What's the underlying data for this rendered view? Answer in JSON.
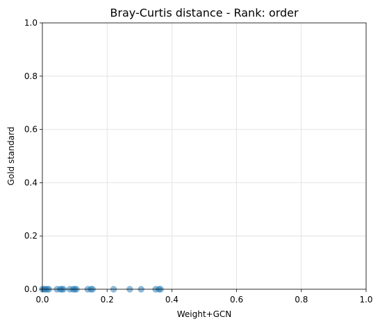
{
  "chart_data": {
    "type": "scatter",
    "title": "Bray-Curtis distance - Rank: order",
    "xlabel": "Weight+GCN",
    "ylabel": "Gold standard",
    "xlim": [
      0.0,
      1.0
    ],
    "ylim": [
      0.0,
      1.0
    ],
    "xticks": [
      "0.0",
      "0.2",
      "0.4",
      "0.6",
      "0.8",
      "1.0"
    ],
    "yticks": [
      "0.0",
      "0.2",
      "0.4",
      "0.6",
      "0.8",
      "1.0"
    ],
    "grid": true,
    "point_color": "#1f77b4",
    "point_alpha": 0.5,
    "points": [
      {
        "x": 0.0,
        "y": 0.0
      },
      {
        "x": 0.005,
        "y": 0.0
      },
      {
        "x": 0.01,
        "y": 0.0
      },
      {
        "x": 0.015,
        "y": 0.0
      },
      {
        "x": 0.02,
        "y": 0.0
      },
      {
        "x": 0.045,
        "y": 0.0
      },
      {
        "x": 0.055,
        "y": 0.0
      },
      {
        "x": 0.06,
        "y": 0.0
      },
      {
        "x": 0.065,
        "y": 0.0
      },
      {
        "x": 0.085,
        "y": 0.0
      },
      {
        "x": 0.095,
        "y": 0.0
      },
      {
        "x": 0.1,
        "y": 0.0
      },
      {
        "x": 0.105,
        "y": 0.0
      },
      {
        "x": 0.14,
        "y": 0.0
      },
      {
        "x": 0.15,
        "y": 0.0
      },
      {
        "x": 0.155,
        "y": 0.0
      },
      {
        "x": 0.22,
        "y": 0.0
      },
      {
        "x": 0.27,
        "y": 0.0
      },
      {
        "x": 0.305,
        "y": 0.0
      },
      {
        "x": 0.35,
        "y": 0.0
      },
      {
        "x": 0.36,
        "y": 0.0
      },
      {
        "x": 0.365,
        "y": 0.0
      }
    ]
  }
}
